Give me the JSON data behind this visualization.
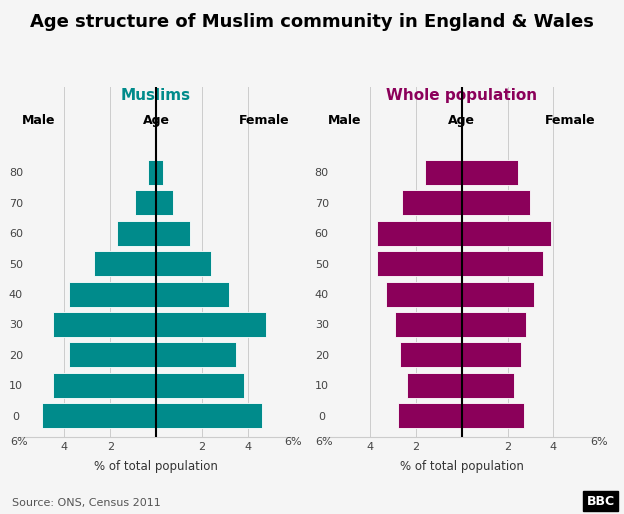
{
  "title": "Age structure of Muslim community in England & Wales",
  "title_fontsize": 13,
  "muslim_color": "#008B8B",
  "whole_color": "#8B005A",
  "muslim_label": "Muslims",
  "whole_label": "Whole population",
  "male_label": "Male",
  "female_label": "Female",
  "age_label": "Age",
  "xlabel": "% of total population",
  "source": "Source: ONS, Census 2011",
  "bbc_text": "BBC",
  "age_groups": [
    "0",
    "10",
    "20",
    "30",
    "40",
    "50",
    "60",
    "70",
    "80"
  ],
  "muslim_male": [
    5.0,
    4.5,
    3.8,
    4.5,
    3.8,
    2.7,
    1.7,
    0.9,
    0.35
  ],
  "muslim_female": [
    4.65,
    3.85,
    3.5,
    4.8,
    3.2,
    2.4,
    1.5,
    0.75,
    0.3
  ],
  "whole_male": [
    2.8,
    2.4,
    2.7,
    2.9,
    3.3,
    3.7,
    3.7,
    2.6,
    1.6
  ],
  "whole_female": [
    2.7,
    2.3,
    2.6,
    2.8,
    3.15,
    3.55,
    3.9,
    3.0,
    2.45
  ],
  "xlim": 6.0,
  "background_color": "#f5f5f5",
  "bar_height": 0.82
}
